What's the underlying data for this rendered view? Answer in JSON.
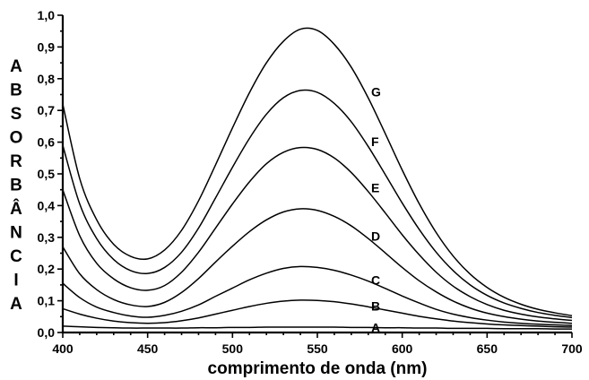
{
  "chart_data": {
    "type": "line",
    "title": "",
    "xlabel": "comprimento de onda (nm)",
    "ylabel": "ABSORBÂNCIA",
    "xlim": [
      400,
      700
    ],
    "ylim": [
      0.0,
      1.0
    ],
    "x_ticks": [
      400,
      450,
      500,
      550,
      600,
      650,
      700
    ],
    "x_tick_labels": [
      "400",
      "450",
      "500",
      "550",
      "600",
      "650",
      "700"
    ],
    "y_ticks": [
      0.0,
      0.1,
      0.2,
      0.3,
      0.4,
      0.5,
      0.6,
      0.7,
      0.8,
      0.9,
      1.0
    ],
    "y_tick_labels": [
      "0,0",
      "0,1",
      "0,2",
      "0,3",
      "0,4",
      "0,5",
      "0,6",
      "0,7",
      "0,8",
      "0,9",
      "1,0"
    ],
    "grid": false,
    "legend": "labels on curves",
    "x": [
      400,
      410,
      420,
      430,
      440,
      450,
      460,
      470,
      480,
      490,
      500,
      510,
      520,
      530,
      540,
      550,
      560,
      570,
      580,
      590,
      600,
      610,
      620,
      630,
      640,
      650,
      660,
      670,
      680,
      690,
      700
    ],
    "series": [
      {
        "name": "A",
        "label_x": 578,
        "values": [
          0.02,
          0.018,
          0.016,
          0.015,
          0.014,
          0.014,
          0.014,
          0.014,
          0.015,
          0.015,
          0.016,
          0.016,
          0.017,
          0.017,
          0.017,
          0.017,
          0.017,
          0.016,
          0.016,
          0.015,
          0.015,
          0.014,
          0.014,
          0.013,
          0.013,
          0.013,
          0.012,
          0.012,
          0.012,
          0.011,
          0.011
        ]
      },
      {
        "name": "B",
        "label_x": 578,
        "values": [
          0.075,
          0.058,
          0.045,
          0.036,
          0.031,
          0.029,
          0.031,
          0.037,
          0.046,
          0.058,
          0.07,
          0.082,
          0.092,
          0.099,
          0.102,
          0.101,
          0.097,
          0.09,
          0.081,
          0.071,
          0.061,
          0.051,
          0.043,
          0.036,
          0.031,
          0.027,
          0.024,
          0.022,
          0.02,
          0.018,
          0.017
        ]
      },
      {
        "name": "C",
        "label_x": 578,
        "values": [
          0.155,
          0.11,
          0.08,
          0.063,
          0.052,
          0.048,
          0.054,
          0.067,
          0.087,
          0.114,
          0.14,
          0.166,
          0.187,
          0.202,
          0.208,
          0.205,
          0.196,
          0.181,
          0.162,
          0.139,
          0.115,
          0.093,
          0.073,
          0.058,
          0.047,
          0.039,
          0.033,
          0.029,
          0.026,
          0.024,
          0.022
        ]
      },
      {
        "name": "D",
        "label_x": 578,
        "values": [
          0.27,
          0.185,
          0.135,
          0.104,
          0.087,
          0.082,
          0.095,
          0.126,
          0.17,
          0.222,
          0.272,
          0.318,
          0.355,
          0.38,
          0.39,
          0.385,
          0.366,
          0.336,
          0.296,
          0.251,
          0.205,
          0.163,
          0.128,
          0.099,
          0.077,
          0.061,
          0.05,
          0.042,
          0.036,
          0.032,
          0.029
        ]
      },
      {
        "name": "E",
        "label_x": 578,
        "values": [
          0.45,
          0.305,
          0.218,
          0.169,
          0.141,
          0.133,
          0.148,
          0.19,
          0.253,
          0.329,
          0.405,
          0.475,
          0.532,
          0.568,
          0.583,
          0.577,
          0.55,
          0.504,
          0.444,
          0.377,
          0.308,
          0.245,
          0.19,
          0.146,
          0.113,
          0.088,
          0.07,
          0.058,
          0.049,
          0.043,
          0.038
        ]
      },
      {
        "name": "F",
        "label_x": 578,
        "values": [
          0.59,
          0.405,
          0.296,
          0.23,
          0.195,
          0.186,
          0.205,
          0.253,
          0.329,
          0.424,
          0.521,
          0.612,
          0.688,
          0.74,
          0.763,
          0.757,
          0.722,
          0.664,
          0.586,
          0.498,
          0.408,
          0.325,
          0.253,
          0.195,
          0.15,
          0.117,
          0.093,
          0.076,
          0.063,
          0.054,
          0.047
        ]
      },
      {
        "name": "G",
        "label_x": 578,
        "values": [
          0.72,
          0.485,
          0.355,
          0.278,
          0.24,
          0.232,
          0.26,
          0.322,
          0.415,
          0.528,
          0.645,
          0.756,
          0.85,
          0.918,
          0.956,
          0.952,
          0.908,
          0.836,
          0.739,
          0.627,
          0.512,
          0.406,
          0.315,
          0.241,
          0.184,
          0.142,
          0.111,
          0.089,
          0.073,
          0.062,
          0.053
        ]
      }
    ]
  }
}
